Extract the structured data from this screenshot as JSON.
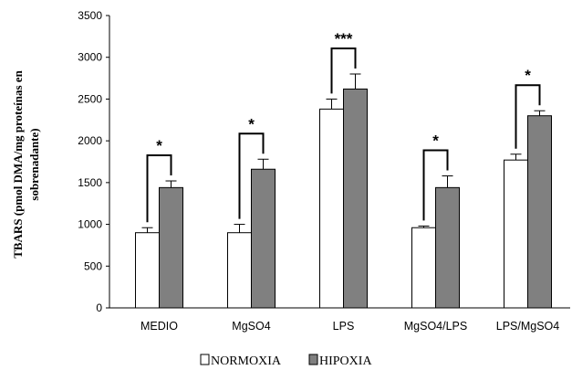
{
  "chart_data": {
    "type": "bar",
    "ylabel_lines": [
      "TBARS (pmol DMA/mg proteínas en",
      "sobrenadante)"
    ],
    "xlabel": "",
    "ylim": [
      0,
      3500
    ],
    "yticks": [
      0,
      500,
      1000,
      1500,
      2000,
      2500,
      3000,
      3500
    ],
    "grid": false,
    "legend_position": "bottom",
    "categories": [
      "MEDIO",
      "MgSO4",
      "LPS",
      "MgSO4/LPS",
      "LPS/MgSO4"
    ],
    "series": [
      {
        "name": "NORMOXIA",
        "color": "#ffffff",
        "values": [
          900,
          900,
          2380,
          960,
          1770
        ],
        "errors": [
          60,
          100,
          120,
          20,
          70
        ]
      },
      {
        "name": "HIPOXIA",
        "color": "#808080",
        "values": [
          1440,
          1660,
          2620,
          1440,
          2300
        ],
        "errors": [
          80,
          120,
          180,
          140,
          60
        ]
      }
    ],
    "significance": [
      "*",
      "*",
      "***",
      "*",
      "*"
    ]
  }
}
